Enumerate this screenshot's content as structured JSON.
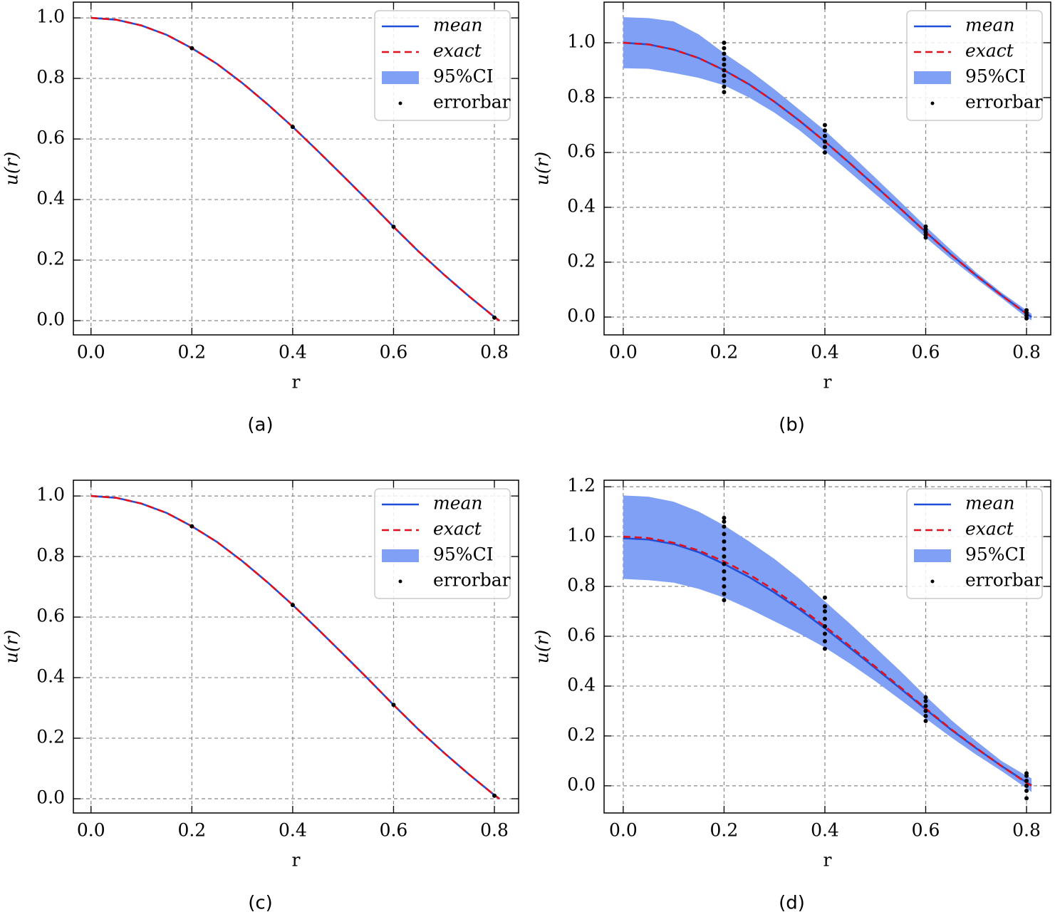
{
  "chart_data": [
    {
      "type": "line",
      "caption": "(a)",
      "xlabel": "r",
      "ylabel": "u(r)",
      "grid": true,
      "legend": "upper right",
      "x": [
        0,
        0.05,
        0.1,
        0.15,
        0.2,
        0.25,
        0.3,
        0.35,
        0.4,
        0.45,
        0.5,
        0.55,
        0.6,
        0.65,
        0.7,
        0.75,
        0.8,
        0.81
      ],
      "series": [
        {
          "name": "mean",
          "kind": "line",
          "color": "#1f4fd8",
          "values": [
            1.0,
            0.994,
            0.975,
            0.944,
            0.9,
            0.848,
            0.785,
            0.715,
            0.64,
            0.56,
            0.478,
            0.395,
            0.31,
            0.228,
            0.152,
            0.08,
            0.012,
            0.0
          ]
        },
        {
          "name": "exact",
          "kind": "dashed",
          "color": "#e3101c",
          "values": [
            1.0,
            0.994,
            0.975,
            0.944,
            0.9,
            0.848,
            0.785,
            0.715,
            0.64,
            0.56,
            0.478,
            0.395,
            0.31,
            0.228,
            0.152,
            0.08,
            0.012,
            0.0
          ]
        },
        {
          "name": "95%CI",
          "kind": "band",
          "color": "#7fa0f5",
          "upper": [
            1.0,
            0.994,
            0.975,
            0.944,
            0.9,
            0.848,
            0.785,
            0.715,
            0.64,
            0.56,
            0.478,
            0.395,
            0.31,
            0.228,
            0.152,
            0.08,
            0.012,
            0.0
          ],
          "lower": [
            1.0,
            0.994,
            0.975,
            0.944,
            0.9,
            0.848,
            0.785,
            0.715,
            0.64,
            0.56,
            0.478,
            0.395,
            0.31,
            0.228,
            0.152,
            0.08,
            0.012,
            0.0
          ]
        },
        {
          "name": "errorbar",
          "kind": "scatter",
          "color": "#000000",
          "x": [
            0.2,
            0.4,
            0.6,
            0.8
          ],
          "values": [
            0.9,
            0.64,
            0.31,
            0.01
          ]
        }
      ],
      "xlim": [
        -0.035,
        0.848
      ],
      "ylim": [
        -0.047,
        1.052
      ],
      "xticks": [
        {
          "value": 0,
          "label": "0.0"
        },
        0.2,
        0.4,
        0.6,
        0.8
      ],
      "yticks": [
        {
          "value": 0,
          "label": "0.0"
        },
        0.2,
        0.4,
        0.6,
        0.8,
        {
          "value": 1,
          "label": "1.0"
        }
      ]
    },
    {
      "type": "line",
      "caption": "(b)",
      "xlabel": "r",
      "ylabel": "u(r)",
      "grid": true,
      "legend": "upper right",
      "x": [
        0,
        0.05,
        0.1,
        0.15,
        0.2,
        0.25,
        0.3,
        0.35,
        0.4,
        0.45,
        0.5,
        0.55,
        0.6,
        0.65,
        0.7,
        0.75,
        0.8,
        0.81
      ],
      "series": [
        {
          "name": "95%CI",
          "kind": "band",
          "color": "#7fa0f5",
          "upper": [
            1.093,
            1.09,
            1.078,
            1.03,
            0.962,
            0.9,
            0.83,
            0.755,
            0.68,
            0.595,
            0.508,
            0.42,
            0.33,
            0.245,
            0.163,
            0.09,
            0.025,
            0.012
          ],
          "lower": [
            0.907,
            0.905,
            0.89,
            0.872,
            0.845,
            0.8,
            0.745,
            0.68,
            0.605,
            0.527,
            0.448,
            0.37,
            0.29,
            0.212,
            0.14,
            0.07,
            -0.002,
            -0.012
          ]
        },
        {
          "name": "mean",
          "kind": "line",
          "color": "#1f4fd8",
          "values": [
            1.0,
            0.994,
            0.975,
            0.944,
            0.9,
            0.848,
            0.785,
            0.715,
            0.64,
            0.56,
            0.478,
            0.395,
            0.31,
            0.228,
            0.152,
            0.08,
            0.012,
            0.0
          ]
        },
        {
          "name": "exact",
          "kind": "dashed",
          "color": "#e3101c",
          "values": [
            1.0,
            0.994,
            0.975,
            0.944,
            0.9,
            0.848,
            0.785,
            0.715,
            0.64,
            0.56,
            0.478,
            0.395,
            0.31,
            0.228,
            0.152,
            0.08,
            0.012,
            0.0
          ]
        },
        {
          "name": "errorbar",
          "kind": "scatter",
          "color": "#000000",
          "x": [
            0.2,
            0.2,
            0.2,
            0.2,
            0.2,
            0.2,
            0.2,
            0.2,
            0.2,
            0.2,
            0.4,
            0.4,
            0.4,
            0.4,
            0.4,
            0.4,
            0.6,
            0.6,
            0.6,
            0.6,
            0.6,
            0.8,
            0.8,
            0.8,
            0.8
          ],
          "values": [
            0.82,
            0.84,
            0.86,
            0.88,
            0.9,
            0.92,
            0.94,
            0.96,
            0.98,
            1.0,
            0.6,
            0.62,
            0.64,
            0.66,
            0.68,
            0.7,
            0.29,
            0.3,
            0.31,
            0.32,
            0.33,
            -0.005,
            0.005,
            0.015,
            0.025
          ]
        }
      ],
      "xlim": [
        -0.038,
        0.848
      ],
      "ylim": [
        -0.065,
        1.148
      ],
      "xticks": [
        {
          "value": 0,
          "label": "0.0"
        },
        0.2,
        0.4,
        0.6,
        0.8
      ],
      "yticks": [
        {
          "value": 0,
          "label": "0.0"
        },
        0.2,
        0.4,
        0.6,
        0.8,
        {
          "value": 1,
          "label": "1.0"
        }
      ]
    },
    {
      "type": "line",
      "caption": "(c)",
      "xlabel": "r",
      "ylabel": "u(r)",
      "grid": true,
      "legend": "upper right",
      "x": [
        0,
        0.05,
        0.1,
        0.15,
        0.2,
        0.25,
        0.3,
        0.35,
        0.4,
        0.45,
        0.5,
        0.55,
        0.6,
        0.65,
        0.7,
        0.75,
        0.8,
        0.81
      ],
      "series": [
        {
          "name": "mean",
          "kind": "line",
          "color": "#1f4fd8",
          "values": [
            1.0,
            0.994,
            0.975,
            0.944,
            0.9,
            0.848,
            0.785,
            0.715,
            0.64,
            0.56,
            0.478,
            0.395,
            0.31,
            0.228,
            0.152,
            0.08,
            0.012,
            0.0
          ]
        },
        {
          "name": "exact",
          "kind": "dashed",
          "color": "#e3101c",
          "values": [
            1.0,
            0.994,
            0.975,
            0.944,
            0.9,
            0.848,
            0.785,
            0.715,
            0.64,
            0.56,
            0.478,
            0.395,
            0.31,
            0.228,
            0.152,
            0.08,
            0.012,
            0.0
          ]
        },
        {
          "name": "95%CI",
          "kind": "band",
          "color": "#7fa0f5",
          "upper": [
            1.0,
            0.994,
            0.975,
            0.944,
            0.9,
            0.848,
            0.785,
            0.715,
            0.64,
            0.56,
            0.478,
            0.395,
            0.31,
            0.228,
            0.152,
            0.08,
            0.012,
            0.0
          ],
          "lower": [
            1.0,
            0.994,
            0.975,
            0.944,
            0.9,
            0.848,
            0.785,
            0.715,
            0.64,
            0.56,
            0.478,
            0.395,
            0.31,
            0.228,
            0.152,
            0.08,
            0.012,
            0.0
          ]
        },
        {
          "name": "errorbar",
          "kind": "scatter",
          "color": "#000000",
          "x": [
            0.2,
            0.4,
            0.6,
            0.8
          ],
          "values": [
            0.9,
            0.64,
            0.31,
            0.01
          ]
        }
      ],
      "xlim": [
        -0.035,
        0.848
      ],
      "ylim": [
        -0.047,
        1.052
      ],
      "xticks": [
        {
          "value": 0,
          "label": "0.0"
        },
        0.2,
        0.4,
        0.6,
        0.8
      ],
      "yticks": [
        {
          "value": 0,
          "label": "0.0"
        },
        0.2,
        0.4,
        0.6,
        0.8,
        {
          "value": 1,
          "label": "1.0"
        }
      ]
    },
    {
      "type": "line",
      "caption": "(d)",
      "xlabel": "r",
      "ylabel": "u(r)",
      "grid": true,
      "legend": "upper right",
      "x": [
        0,
        0.05,
        0.1,
        0.15,
        0.2,
        0.25,
        0.3,
        0.35,
        0.4,
        0.45,
        0.5,
        0.55,
        0.6,
        0.65,
        0.7,
        0.75,
        0.8,
        0.81
      ],
      "series": [
        {
          "name": "95%CI",
          "kind": "band",
          "color": "#7fa0f5",
          "upper": [
            1.165,
            1.16,
            1.14,
            1.1,
            1.045,
            0.98,
            0.91,
            0.83,
            0.74,
            0.65,
            0.555,
            0.46,
            0.36,
            0.265,
            0.18,
            0.1,
            0.04,
            0.03
          ],
          "lower": [
            0.83,
            0.825,
            0.815,
            0.79,
            0.755,
            0.71,
            0.66,
            0.61,
            0.555,
            0.49,
            0.42,
            0.345,
            0.27,
            0.195,
            0.125,
            0.06,
            -0.01,
            -0.025
          ]
        },
        {
          "name": "mean",
          "kind": "line",
          "color": "#1f4fd8",
          "values": [
            0.993,
            0.988,
            0.97,
            0.937,
            0.89,
            0.837,
            0.775,
            0.707,
            0.632,
            0.553,
            0.472,
            0.39,
            0.307,
            0.226,
            0.151,
            0.08,
            0.014,
            0.002
          ]
        },
        {
          "name": "exact",
          "kind": "dashed",
          "color": "#e3101c",
          "values": [
            1.0,
            0.994,
            0.975,
            0.944,
            0.9,
            0.848,
            0.785,
            0.715,
            0.64,
            0.56,
            0.478,
            0.395,
            0.31,
            0.228,
            0.152,
            0.08,
            0.012,
            0.0
          ]
        },
        {
          "name": "errorbar",
          "kind": "scatter",
          "color": "#000000",
          "x": [
            0.2,
            0.2,
            0.2,
            0.2,
            0.2,
            0.2,
            0.2,
            0.2,
            0.2,
            0.2,
            0.2,
            0.2,
            0.2,
            0.4,
            0.4,
            0.4,
            0.4,
            0.4,
            0.4,
            0.4,
            0.4,
            0.6,
            0.6,
            0.6,
            0.6,
            0.6,
            0.6,
            0.8,
            0.8,
            0.8,
            0.8,
            0.8,
            0.8
          ],
          "values": [
            0.745,
            0.77,
            0.8,
            0.83,
            0.86,
            0.89,
            0.92,
            0.95,
            0.98,
            1.01,
            1.04,
            1.06,
            1.075,
            0.55,
            0.58,
            0.61,
            0.64,
            0.67,
            0.7,
            0.72,
            0.755,
            0.26,
            0.28,
            0.3,
            0.32,
            0.34,
            0.355,
            -0.05,
            -0.02,
            0.0,
            0.02,
            0.04,
            0.05
          ]
        }
      ],
      "xlim": [
        -0.038,
        0.848
      ],
      "ylim": [
        -0.109,
        1.226
      ],
      "xticks": [
        {
          "value": 0,
          "label": "0.0"
        },
        0.2,
        0.4,
        0.6,
        0.8
      ],
      "yticks": [
        {
          "value": 0,
          "label": "0.0"
        },
        0.2,
        0.4,
        0.6,
        0.8,
        {
          "value": 1,
          "label": "1.0"
        },
        1.2
      ]
    }
  ]
}
